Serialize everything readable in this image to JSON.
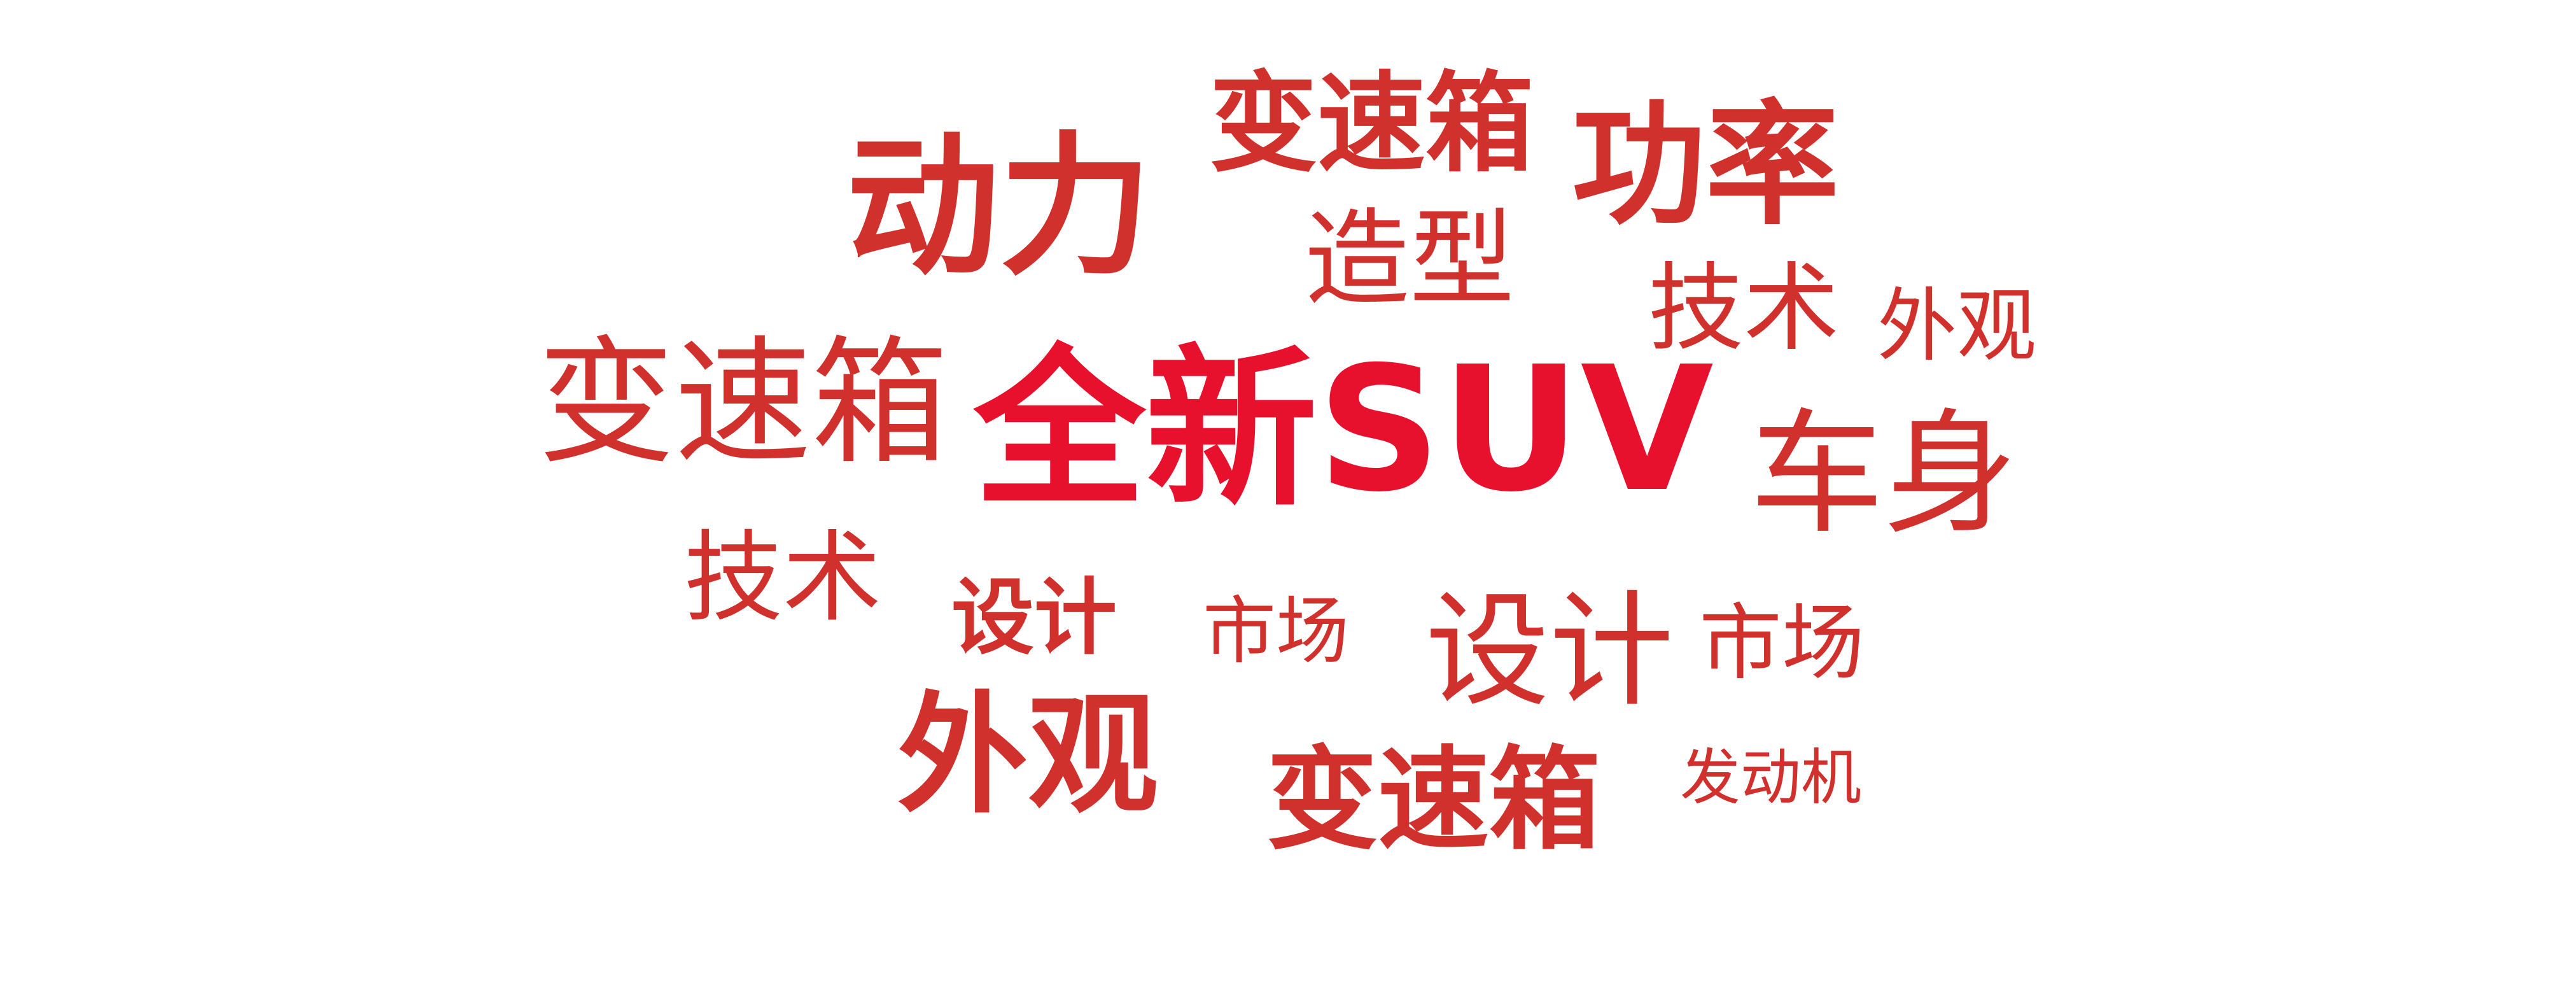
{
  "word_cloud": {
    "words": [
      {
        "id": "center",
        "text": "全新SUV",
        "weight": "bold",
        "color": "#e8112d"
      },
      {
        "id": "dongli",
        "text": "动力",
        "weight": "bold",
        "color": "#d0312d"
      },
      {
        "id": "bsx_top",
        "text": "变速箱",
        "weight": "bold",
        "color": "#d0312d"
      },
      {
        "id": "gonglv",
        "text": "功率",
        "weight": "bold",
        "color": "#d0312d"
      },
      {
        "id": "zaoxing",
        "text": "造型",
        "weight": "normal",
        "color": "#d0312d"
      },
      {
        "id": "jishu_r",
        "text": "技术",
        "weight": "normal",
        "color": "#d0312d"
      },
      {
        "id": "waiguan_r",
        "text": "外观",
        "weight": "normal",
        "color": "#d0312d"
      },
      {
        "id": "bsx_left",
        "text": "变速箱",
        "weight": "normal",
        "color": "#d0312d"
      },
      {
        "id": "cheshen",
        "text": "车身",
        "weight": "normal",
        "color": "#d0312d"
      },
      {
        "id": "jishu_l",
        "text": "技术",
        "weight": "normal",
        "color": "#d0312d"
      },
      {
        "id": "sheji_s",
        "text": "设计",
        "weight": "bold",
        "color": "#d0312d"
      },
      {
        "id": "shichang_s",
        "text": "市场",
        "weight": "normal",
        "color": "#d0312d"
      },
      {
        "id": "sheji_l",
        "text": "设计",
        "weight": "normal",
        "color": "#d0312d"
      },
      {
        "id": "shichang_r",
        "text": "市场",
        "weight": "normal",
        "color": "#d0312d"
      },
      {
        "id": "waiguan_l",
        "text": "外观",
        "weight": "bold",
        "color": "#d0312d"
      },
      {
        "id": "bsx_bot",
        "text": "变速箱",
        "weight": "bold",
        "color": "#d0312d"
      },
      {
        "id": "fdj",
        "text": "发动机",
        "weight": "normal",
        "color": "#d0312d"
      }
    ]
  }
}
